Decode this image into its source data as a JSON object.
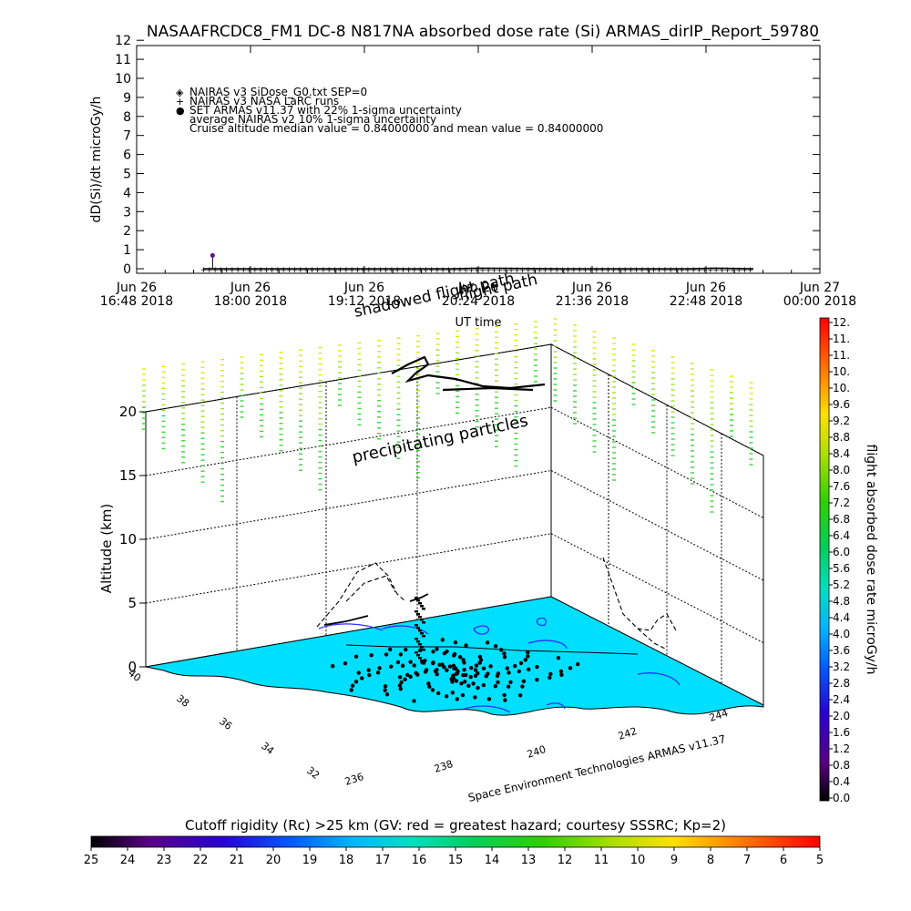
{
  "title": "NASAAFRCDC8_FM1 DC-8   N817NA absorbed dose rate (Si) ARMAS_dirIP_Report_59780",
  "chart_data": [
    {
      "type": "line",
      "ylabel": "dD(Si)/dt microGy/h",
      "xlabel": "",
      "ylim": [
        0,
        12
      ],
      "yticks": [
        "0",
        "1",
        "2",
        "3",
        "4",
        "5",
        "6",
        "7",
        "8",
        "9",
        "10",
        "11",
        "12"
      ],
      "xticks": [
        {
          "top": "Jun 26",
          "bottom": "16:48 2018"
        },
        {
          "top": "Jun 26",
          "bottom": "18:00 2018"
        },
        {
          "top": "Jun 26",
          "bottom": "19:12 2018"
        },
        {
          "top": "Jun 26",
          "bottom": "20:24 2018"
        },
        {
          "top": "Jun 26",
          "bottom": "21:36 2018"
        },
        {
          "top": "Jun 26",
          "bottom": "22:48 2018"
        },
        {
          "top": "Jun 27",
          "bottom": "00:00 2018"
        }
      ],
      "xrange_hours": [
        0,
        7.2
      ],
      "legend": [
        {
          "symbol": "◈",
          "label": "NAIRAS v3 SiDose_G0.txt SEP=0"
        },
        {
          "symbol": "+",
          "label": "NAIRAS v3 NASA LaRC runs"
        },
        {
          "symbol": "●",
          "label": "SET ARMAS v11.37 with 22% 1-sigma uncertainty",
          "color": "#0000ff"
        },
        {
          "symbol": "",
          "label": "average NAIRAS v2 10% 1-sigma uncertainty"
        },
        {
          "symbol": "",
          "label": "Cruise altitude median value = 0.84000000 and mean value = 0.84000000"
        }
      ],
      "series": [
        {
          "name": "NAIRAS v3 NASA LaRC runs",
          "x_hours": [
            0.7,
            1.5,
            2.5,
            3.3,
            3.6,
            4.0,
            4.5,
            5.0,
            5.5,
            5.8,
            6.1,
            6.5
          ],
          "values": [
            0,
            0,
            0,
            0,
            0.03,
            0.02,
            0,
            0,
            0,
            0,
            0.03,
            0
          ]
        },
        {
          "name": "SET ARMAS v11.37 with 22% 1-sigma uncertainty",
          "x_hours": [
            0.8
          ],
          "values": [
            0.7
          ]
        }
      ],
      "xaxis_title": "UT time"
    },
    {
      "type": "scatter",
      "ylabel": "Altitude (km)",
      "zticks": [
        "0",
        "5",
        "10",
        "15",
        "20"
      ],
      "lat_ticks": [
        "40",
        "38",
        "36",
        "34",
        "32"
      ],
      "lon_ticks": [
        "236",
        "238",
        "240",
        "242",
        "244"
      ],
      "annotations": [
        "flight path",
        "shadowed flight path",
        "precipitating particles",
        "Space Environment Technologies ARMAS v11.37"
      ],
      "colorbar_ticks": [
        "0.0",
        "0.4",
        "0.8",
        "1.2",
        "1.6",
        "2.0",
        "2.4",
        "2.8",
        "3.2",
        "3.6",
        "4.0",
        "4.4",
        "4.8",
        "5.2",
        "5.6",
        "6.0",
        "6.4",
        "6.8",
        "7.2",
        "7.6",
        "8.0",
        "8.4",
        "8.8",
        "9.2",
        "9.6",
        "10.",
        "10.",
        "11.",
        "11.",
        "12."
      ],
      "colorbar_label": "flight absorbed dose rate microGy/h",
      "colorbar_range": [
        0,
        12
      ]
    },
    {
      "type": "heatmap",
      "title": "Cutoff rigidity (Rc) >25 km (GV: red = greatest hazard; courtesy SSSRC; Kp=2)",
      "ticks": [
        "25",
        "24",
        "23",
        "22",
        "21",
        "20",
        "19",
        "18",
        "17",
        "16",
        "15",
        "14",
        "13",
        "12",
        "11",
        "10",
        "9",
        "8",
        "7",
        "6",
        "5"
      ],
      "range": [
        25,
        5
      ]
    }
  ],
  "colors": {
    "surface": "#00dfff",
    "precipitating": "#9be234",
    "flight_path": "#000000",
    "contour": "#3030ff"
  }
}
